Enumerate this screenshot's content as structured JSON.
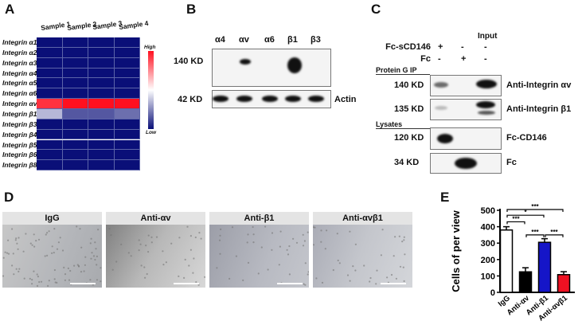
{
  "panels": {
    "a": "A",
    "b": "B",
    "c": "C",
    "d": "D",
    "e": "E"
  },
  "heatmap": {
    "columns": [
      "Sample 1",
      "Sample 2",
      "Sample 3",
      "Sample 4"
    ],
    "rows": [
      "Integrin α1",
      "Integrin α2",
      "Integrin α3",
      "Integrin α4",
      "Integrin α5",
      "Integrin α6",
      "Integrin αv",
      "Integrin β1",
      "Integrin β3",
      "Integrin β4",
      "Integrin β5",
      "Integrin β6",
      "Integrin β8"
    ],
    "values": [
      [
        0,
        0,
        0,
        0
      ],
      [
        0,
        0,
        0,
        0
      ],
      [
        0,
        0,
        0,
        0
      ],
      [
        0,
        0,
        0,
        0
      ],
      [
        0,
        0,
        0,
        0
      ],
      [
        0,
        0,
        0,
        0
      ],
      [
        0.93,
        1,
        1,
        1
      ],
      [
        0.35,
        0.15,
        0.15,
        0.2
      ],
      [
        0,
        0,
        0,
        0
      ],
      [
        0,
        0,
        0,
        0
      ],
      [
        0,
        0,
        0,
        0
      ],
      [
        0,
        0,
        0,
        0
      ],
      [
        0,
        0,
        0,
        0
      ]
    ],
    "scale_high": "High",
    "scale_low": "Low",
    "colors": {
      "low": "#0a0f78",
      "mid": "#ffffff",
      "high": "#ff1020"
    }
  },
  "blot_b": {
    "lanes": [
      "α4",
      "αv",
      "α6",
      "β1",
      "β3"
    ],
    "rows": [
      {
        "kd": "140 KD",
        "label": ""
      },
      {
        "kd": "42 KD",
        "label": "Actin"
      }
    ]
  },
  "blot_c": {
    "input_label": "Input",
    "conditions": [
      {
        "name": "Fc-sCD146",
        "marks": [
          "+",
          "-",
          "-"
        ]
      },
      {
        "name": "Fc",
        "marks": [
          "-",
          "+",
          "-"
        ]
      }
    ],
    "section1": "Protein G IP",
    "section2": "Lysates",
    "rows": [
      {
        "kd": "140 KD",
        "label": "Anti-Integrin αv"
      },
      {
        "kd": "135 KD",
        "label": "Anti-Integrin β1"
      },
      {
        "kd": "120 KD",
        "label": "Fc-CD146"
      },
      {
        "kd": "34 KD",
        "label": "Fc"
      }
    ]
  },
  "micrographs": [
    "IgG",
    "Anti-αv",
    "Anti-β1",
    "Anti-αvβ1"
  ],
  "chart_data": {
    "type": "bar",
    "categories": [
      "IgG",
      "Anti-αv",
      "Anti-β1",
      "Anti-αvβ1"
    ],
    "values": [
      380,
      125,
      305,
      108
    ],
    "errors": [
      20,
      25,
      22,
      18
    ],
    "colors": [
      "#ffffff",
      "#000000",
      "#1515c8",
      "#ee1122"
    ],
    "ylabel": "Cells of per view",
    "ylim": [
      0,
      500
    ],
    "yticks": [
      "0",
      "100",
      "200",
      "300",
      "400",
      "500"
    ],
    "significance": [
      {
        "from": 0,
        "to": 1,
        "label": "***"
      },
      {
        "from": 0,
        "to": 2,
        "label": "*"
      },
      {
        "from": 0,
        "to": 3,
        "label": "***"
      },
      {
        "from": 1,
        "to": 2,
        "label": "***"
      },
      {
        "from": 2,
        "to": 3,
        "label": "***"
      }
    ]
  }
}
